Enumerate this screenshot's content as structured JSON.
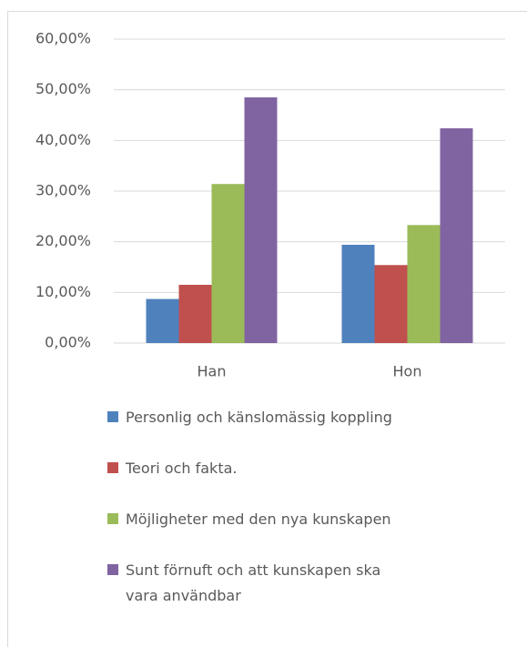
{
  "chart_data": {
    "type": "bar",
    "categories": [
      "Han",
      "Hon"
    ],
    "series": [
      {
        "name": "Personlig och känslomässig koppling",
        "color": "#4f81bd",
        "values": [
          8.7,
          19.4
        ]
      },
      {
        "name": "Teori och fakta.",
        "color": "#c0504d",
        "values": [
          11.5,
          15.4
        ]
      },
      {
        "name": "Möjligheter med den nya kunskapen",
        "color": "#9bbb59",
        "values": [
          31.4,
          23.3
        ]
      },
      {
        "name": "Sunt förnuft och att kunskapen ska vara användbar",
        "color": "#8064a2",
        "values": [
          48.5,
          42.4
        ]
      }
    ],
    "ylim": [
      0,
      60
    ],
    "yticks": [
      {
        "value": 0,
        "label": "0,00%"
      },
      {
        "value": 10,
        "label": "10,00%"
      },
      {
        "value": 20,
        "label": "20,00%"
      },
      {
        "value": 30,
        "label": "30,00%"
      },
      {
        "value": 40,
        "label": "40,00%"
      },
      {
        "value": 50,
        "label": "50,00%"
      },
      {
        "value": 60,
        "label": "60,00%"
      }
    ],
    "grid": true,
    "legend": "bottom"
  }
}
